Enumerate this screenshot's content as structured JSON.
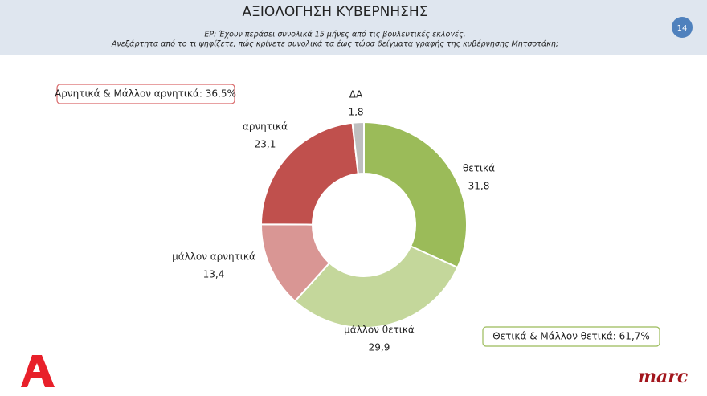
{
  "header": {
    "title": "ΑΞΙΟΛΟΓΗΣΗ ΚΥΒΕΡΝΗΣΗΣ",
    "subtitle": [
      "ΕΡ: Έχουν περάσει συνολικά 15 μήνες από τις βουλευτικές εκλογές.",
      "Ανεξάρτητα από το τι ψηφίζετε, πώς κρίνετε συνολικά τα έως τώρα δείγματα γραφής της κυβέρνησης Μητσοτάκη;"
    ],
    "page_number": "14"
  },
  "chart_data": {
    "type": "donut",
    "categories": [
      "θετικά",
      "μάλλον θετικά",
      "μάλλον αρνητικά",
      "αρνητικά",
      "ΔΑ"
    ],
    "values": [
      31.8,
      29.9,
      13.4,
      23.1,
      1.8
    ],
    "value_labels": [
      "31,8",
      "29,9",
      "13,4",
      "23,1",
      "1,8"
    ],
    "colors": [
      "#9bbb59",
      "#c4d79b",
      "#d99694",
      "#c0504d",
      "#bfbfbf"
    ],
    "annotations": [
      "Αρνητικά & Μάλλον αρνητικά: 36,5%",
      "Θετικά & Μάλλον θετικά: 61,7%"
    ]
  },
  "footer": {
    "brand": "marc"
  }
}
